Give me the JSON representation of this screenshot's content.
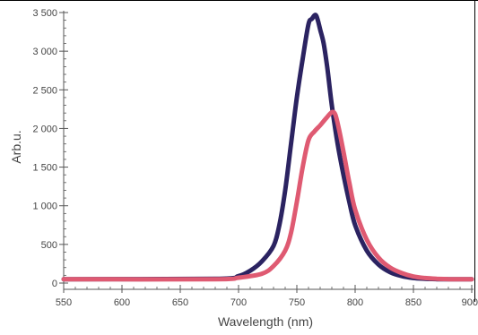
{
  "chart_data": {
    "type": "line",
    "title": "",
    "xlabel": "Wavelength (nm)",
    "ylabel": "Arb.u.",
    "xlim": [
      550,
      900
    ],
    "ylim": [
      0,
      3500
    ],
    "xticks": [
      550,
      600,
      650,
      700,
      750,
      800,
      850,
      900
    ],
    "yticks": [
      0,
      500,
      1000,
      1500,
      2000,
      2500,
      3000,
      3500
    ],
    "xtick_labels": [
      "550",
      "600",
      "650",
      "700",
      "750",
      "800",
      "850",
      "900"
    ],
    "ytick_labels": [
      "0",
      "500",
      "1 000",
      "1 500",
      "2 000",
      "2 500",
      "3 000",
      "3 500"
    ],
    "grid": false,
    "legend": "none",
    "series": [
      {
        "color": "#2b2361",
        "x": [
          550,
          680,
          700,
          710,
          720,
          730,
          735,
          740,
          745,
          750,
          755,
          760,
          763,
          766,
          768,
          770,
          773,
          776,
          780,
          785,
          790,
          795,
          800,
          810,
          820,
          830,
          840,
          850,
          860,
          870,
          880,
          890,
          900
        ],
        "y": [
          50,
          55,
          90,
          160,
          280,
          480,
          750,
          1200,
          1800,
          2400,
          2900,
          3350,
          3420,
          3470,
          3400,
          3280,
          3100,
          2800,
          2300,
          1800,
          1400,
          1050,
          750,
          420,
          240,
          140,
          90,
          65,
          55,
          50,
          50,
          50,
          50
        ]
      },
      {
        "color": "#df5a72",
        "x": [
          550,
          680,
          700,
          720,
          730,
          740,
          745,
          750,
          755,
          760,
          765,
          770,
          775,
          780,
          783,
          786,
          790,
          795,
          800,
          810,
          820,
          830,
          840,
          850,
          860,
          870,
          880,
          890,
          900
        ],
        "y": [
          50,
          50,
          70,
          120,
          220,
          420,
          650,
          1050,
          1500,
          1850,
          1960,
          2040,
          2130,
          2210,
          2180,
          2000,
          1700,
          1300,
          950,
          560,
          330,
          200,
          130,
          85,
          65,
          55,
          50,
          50,
          50
        ]
      }
    ]
  }
}
